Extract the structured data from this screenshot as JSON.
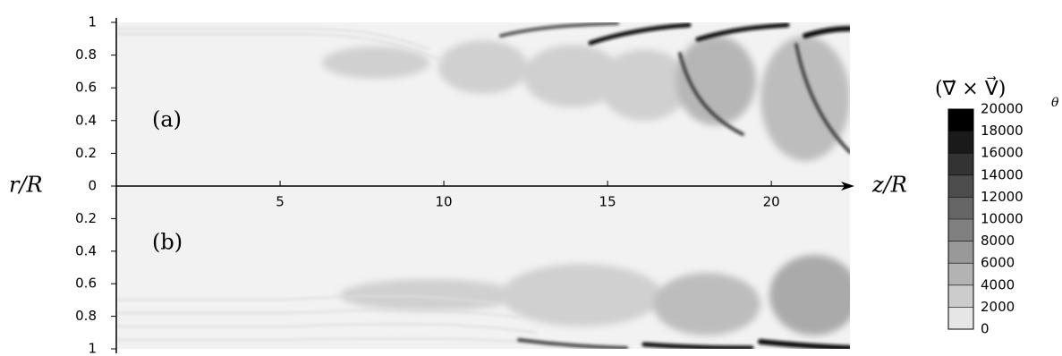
{
  "chart_data": {
    "type": "contour",
    "xlabel": "z/R",
    "ylabel": "r/R",
    "xlim": [
      0,
      22.4
    ],
    "xticks": [
      5,
      10,
      15,
      20
    ],
    "panels": [
      {
        "label": "(a)",
        "ylim": [
          0,
          1
        ],
        "yticks": [
          0,
          0.2,
          0.4,
          0.6,
          0.8,
          1
        ]
      },
      {
        "label": "(b)",
        "ylim": [
          0,
          1
        ],
        "yticks": [
          0.2,
          0.4,
          0.6,
          0.8,
          1
        ]
      }
    ],
    "colorbar": {
      "title": "(∇⃗ × V⃗)",
      "title_sub": "θ",
      "lim": [
        0,
        20000
      ],
      "ticks": [
        0,
        2000,
        4000,
        6000,
        8000,
        10000,
        12000,
        14000,
        16000,
        18000,
        20000
      ]
    }
  }
}
